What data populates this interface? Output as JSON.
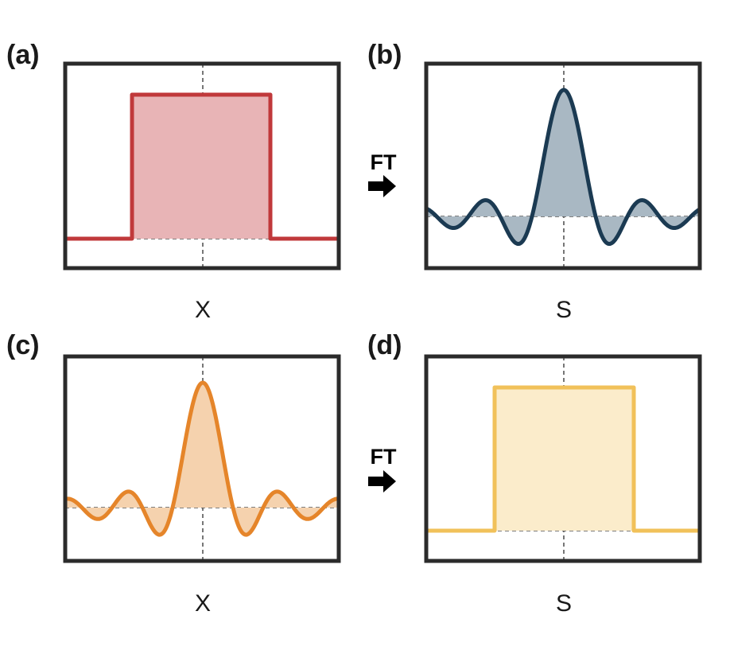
{
  "ft_label": "FT",
  "panels": [
    {
      "label": "(a)",
      "axis_label": "X",
      "kind": "rect",
      "line_color": "#c0393b",
      "fill_color": "#e8b4b6"
    },
    {
      "label": "(b)",
      "axis_label": "S",
      "kind": "sinc",
      "line_color": "#1b3a52",
      "fill_color": "#a9b8c3"
    },
    {
      "label": "(c)",
      "axis_label": "X",
      "kind": "sinc",
      "line_color": "#e5852a",
      "fill_color": "#f5d2ae"
    },
    {
      "label": "(d)",
      "axis_label": "S",
      "kind": "rect",
      "line_color": "#f1c15a",
      "fill_color": "#fbeccb"
    }
  ]
}
